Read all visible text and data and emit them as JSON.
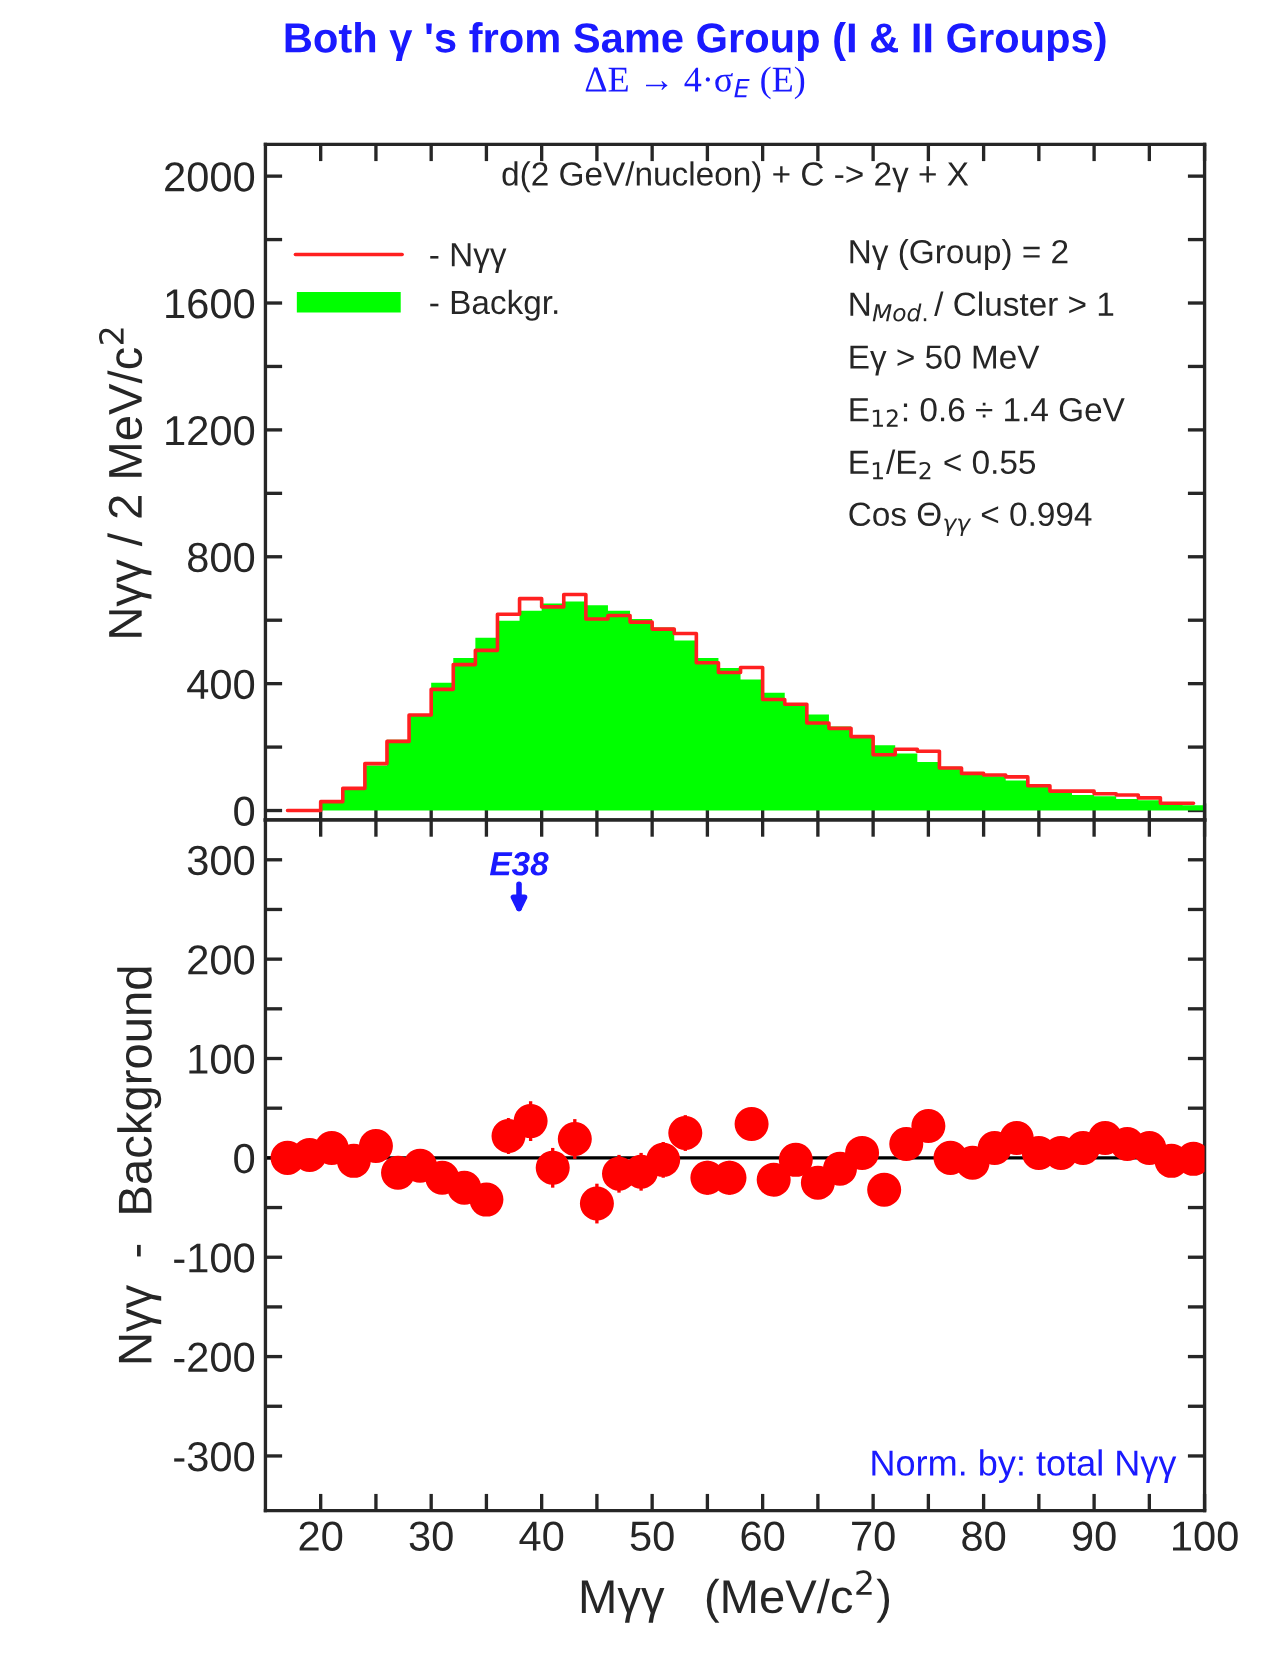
{
  "chart_data": [
    {
      "type": "histogram",
      "title": "Both γ 's from Same Group (I & II Groups)",
      "subtitle": "ΔE → 4·σ$_{E}$ (E)",
      "ylabel": "Nγγ / 2 MeV/c$^{2}$",
      "bins": [
        16,
        18,
        20,
        22,
        24,
        26,
        28,
        30,
        32,
        34,
        36,
        38,
        40,
        42,
        44,
        46,
        48,
        50,
        52,
        54,
        56,
        58,
        60,
        62,
        64,
        66,
        68,
        70,
        72,
        74,
        76,
        78,
        80,
        82,
        84,
        86,
        88,
        90,
        92,
        94,
        96,
        98,
        100
      ],
      "series": [
        {
          "name": "- Nγγ",
          "type": "step",
          "color": "#ff2020",
          "x": [
            17,
            19,
            21,
            23,
            25,
            27,
            29,
            31,
            33,
            35,
            37,
            39,
            41,
            43,
            45,
            47,
            49,
            51,
            53,
            55,
            57,
            59,
            61,
            63,
            65,
            67,
            69,
            71,
            73,
            75,
            77,
            79,
            81,
            83,
            85,
            87,
            89,
            91,
            93,
            95,
            97,
            99
          ],
          "values": [
            0,
            0,
            28,
            70,
            148,
            218,
            301,
            382,
            460,
            505,
            619,
            668,
            642,
            681,
            604,
            615,
            594,
            572,
            558,
            466,
            435,
            451,
            350,
            335,
            276,
            259,
            233,
            176,
            193,
            187,
            134,
            117,
            112,
            106,
            78,
            61,
            61,
            53,
            49,
            40,
            23,
            23
          ]
        },
        {
          "name": "- Backgr.",
          "type": "histogram",
          "color": "#00ff00",
          "values": [
            0,
            0,
            25,
            70,
            142,
            223,
            303,
            403,
            481,
            545,
            598,
            630,
            653,
            659,
            647,
            630,
            604,
            577,
            536,
            481,
            449,
            413,
            371,
            333,
            303,
            265,
            233,
            206,
            180,
            153,
            138,
            112,
            108,
            95,
            74,
            57,
            49,
            45,
            36,
            32,
            23,
            17
          ]
        }
      ],
      "xlim": [
        15,
        100
      ],
      "ylim": [
        -30,
        2100
      ],
      "xticks": [
        20,
        {
          "value": 25,
          "label": null
        },
        30,
        {
          "value": 35,
          "label": null
        },
        40,
        {
          "value": 45,
          "label": null
        },
        50,
        {
          "value": 55,
          "label": null
        },
        60,
        {
          "value": 65,
          "label": null
        },
        70,
        {
          "value": 75,
          "label": null
        },
        80,
        {
          "value": 85,
          "label": null
        },
        90,
        {
          "value": 95,
          "label": null
        },
        100
      ],
      "yticks": [
        0,
        {
          "value": 200,
          "label": null
        },
        400,
        {
          "value": 600,
          "label": null
        },
        800,
        {
          "value": 1000,
          "label": null
        },
        1200,
        {
          "value": 1400,
          "label": null
        },
        1600,
        {
          "value": 1800,
          "label": null
        },
        2000
      ],
      "tick_labels": "y",
      "legend": "top left",
      "grid": false,
      "annotations": [
        "d(2 GeV/nucleon) + C -> 2γ + X",
        "Nγ (Group) = 2",
        "N$_{Mod.}$/ Cluster > 1",
        "Eγ > 50 MeV",
        "E$_{12}$: 0.6 ÷ 1.4 GeV",
        "E$_{1}$/E$_{2}$ < 0.55",
        "Cos Θ$_{γγ}$ < 0.994"
      ]
    },
    {
      "type": "scatter",
      "xlabel": "Mγγ   (MeV/c$^{2}$)",
      "ylabel": "Nγγ  -  Background",
      "x": [
        17,
        19,
        21,
        23,
        25,
        27,
        29,
        31,
        33,
        35,
        37,
        39,
        41,
        43,
        45,
        47,
        49,
        51,
        53,
        55,
        57,
        59,
        61,
        63,
        65,
        67,
        69,
        71,
        73,
        75,
        77,
        79,
        81,
        83,
        85,
        87,
        89,
        91,
        93,
        95,
        97,
        99
      ],
      "values": [
        0,
        3,
        10,
        -3,
        12,
        -15,
        -8,
        -20,
        -30,
        -42,
        22,
        37,
        -10,
        19,
        -46,
        -16,
        -14,
        -2,
        25,
        -20,
        -20,
        34,
        -22,
        -2,
        -25,
        -11,
        5,
        -32,
        14,
        32,
        0,
        -5,
        10,
        20,
        5,
        5,
        10,
        20,
        14,
        10,
        -3,
        -1
      ],
      "errors": [
        4,
        5,
        6,
        8,
        9,
        10,
        12,
        13,
        14,
        16,
        18,
        20,
        20,
        20,
        20,
        19,
        19,
        18,
        18,
        17,
        17,
        16,
        15,
        15,
        14,
        13,
        12,
        null,
        11,
        10,
        9,
        8,
        8,
        7,
        7,
        6,
        6,
        5,
        5,
        5,
        4,
        4
      ],
      "color": "#ff0000",
      "marker": "circle",
      "xlim": [
        15,
        100
      ],
      "ylim": [
        -355,
        340
      ],
      "xticks": [
        20,
        {
          "value": 25,
          "label": null
        },
        30,
        {
          "value": 35,
          "label": null
        },
        40,
        {
          "value": 45,
          "label": null
        },
        50,
        {
          "value": 55,
          "label": null
        },
        60,
        {
          "value": 65,
          "label": null
        },
        70,
        {
          "value": 75,
          "label": null
        },
        80,
        {
          "value": 85,
          "label": null
        },
        90,
        {
          "value": 95,
          "label": null
        },
        100
      ],
      "yticks": [
        -300,
        {
          "value": -250,
          "label": null
        },
        -200,
        {
          "value": -150,
          "label": null
        },
        -100,
        {
          "value": -50,
          "label": null
        },
        0,
        {
          "value": 50,
          "label": null
        },
        100,
        {
          "value": 150,
          "label": null
        },
        200,
        {
          "value": 250,
          "label": null
        },
        300
      ],
      "ref_lines": [
        {
          "axis": "y",
          "value": 0,
          "color": "#000000"
        }
      ],
      "grid": false,
      "annotations": [
        "E38",
        "Norm. by: total Nγγ"
      ]
    }
  ]
}
